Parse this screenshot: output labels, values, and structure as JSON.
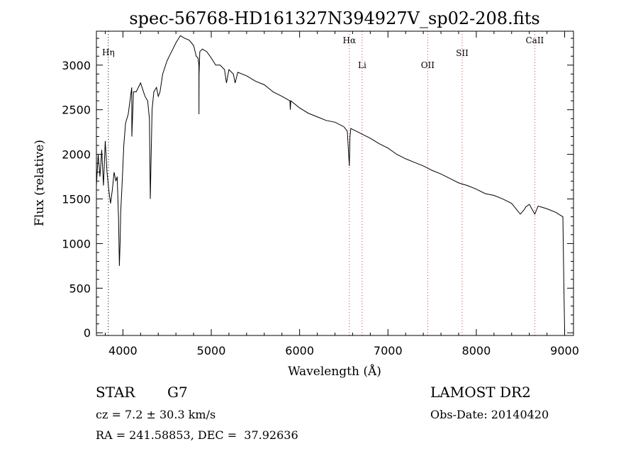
{
  "chart_data": {
    "type": "line",
    "title": "spec-56768-HD161327N394927V_sp02-208.fits",
    "xlabel": "Wavelength (Å)",
    "ylabel": "Flux (relative)",
    "xlim": [
      3700,
      9100
    ],
    "ylim": [
      -30,
      3380
    ],
    "xticks": [
      4000,
      5000,
      6000,
      7000,
      8000,
      9000
    ],
    "yticks": [
      0,
      500,
      1000,
      1500,
      2000,
      2500,
      3000
    ],
    "grid": false,
    "series": [
      {
        "x": [
          3700,
          3720,
          3740,
          3760,
          3780,
          3800,
          3820,
          3840,
          3860,
          3880,
          3900,
          3920,
          3935,
          3950,
          3960,
          3968,
          3975,
          3990,
          4010,
          4030,
          4060,
          4080,
          4100,
          4101,
          4120,
          4150,
          4200,
          4250,
          4280,
          4300,
          4310,
          4320,
          4330,
          4350,
          4380,
          4400,
          4420,
          4450,
          4500,
          4550,
          4600,
          4650,
          4700,
          4750,
          4800,
          4830,
          4850,
          4860,
          4861,
          4862,
          4870,
          4900,
          4950,
          5000,
          5050,
          5100,
          5150,
          5172,
          5200,
          5250,
          5270,
          5300,
          5400,
          5500,
          5600,
          5700,
          5800,
          5890,
          5895,
          5900,
          6000,
          6100,
          6200,
          6300,
          6400,
          6500,
          6540,
          6563,
          6570,
          6580,
          6600,
          6700,
          6800,
          6900,
          7000,
          7100,
          7200,
          7300,
          7400,
          7500,
          7600,
          7700,
          7800,
          7900,
          8000,
          8100,
          8200,
          8300,
          8400,
          8498,
          8542,
          8560,
          8600,
          8662,
          8700,
          8800,
          8900,
          8980,
          8990,
          9000
        ],
        "y": [
          1650,
          2000,
          1750,
          2050,
          1650,
          2150,
          1800,
          1600,
          1450,
          1600,
          1800,
          1700,
          1750,
          1300,
          750,
          1000,
          1350,
          1650,
          2100,
          2350,
          2450,
          2600,
          2750,
          2200,
          2700,
          2700,
          2800,
          2650,
          2600,
          2400,
          1500,
          2000,
          2500,
          2700,
          2750,
          2650,
          2700,
          2900,
          3050,
          3150,
          3250,
          3330,
          3300,
          3280,
          3220,
          3100,
          3080,
          3000,
          2450,
          2900,
          3150,
          3180,
          3150,
          3080,
          3000,
          3000,
          2950,
          2800,
          2950,
          2900,
          2800,
          2920,
          2880,
          2820,
          2780,
          2700,
          2650,
          2600,
          2500,
          2600,
          2520,
          2460,
          2420,
          2380,
          2360,
          2310,
          2260,
          1870,
          2200,
          2290,
          2280,
          2230,
          2180,
          2120,
          2070,
          2000,
          1950,
          1910,
          1870,
          1820,
          1780,
          1730,
          1680,
          1650,
          1610,
          1560,
          1540,
          1500,
          1450,
          1330,
          1380,
          1410,
          1440,
          1330,
          1420,
          1390,
          1350,
          1300,
          600,
          0
        ]
      }
    ],
    "lines": [
      {
        "label": "Hη",
        "x": 3835
      },
      {
        "label": "Hα",
        "x": 6563
      },
      {
        "label": "Li",
        "x": 6708
      },
      {
        "label": "OII",
        "x": 7450
      },
      {
        "label": "SII",
        "x": 7840
      },
      {
        "label": "CaII",
        "x": 8662
      }
    ]
  },
  "info": {
    "object": "STAR",
    "subclass": "G7",
    "survey": "LAMOST DR2",
    "cz": "cz = 7.2 ± 30.3 km/s",
    "obs_date": "Obs-Date: 20140420",
    "coords": "RA = 241.58853, DEC =  37.92636"
  }
}
